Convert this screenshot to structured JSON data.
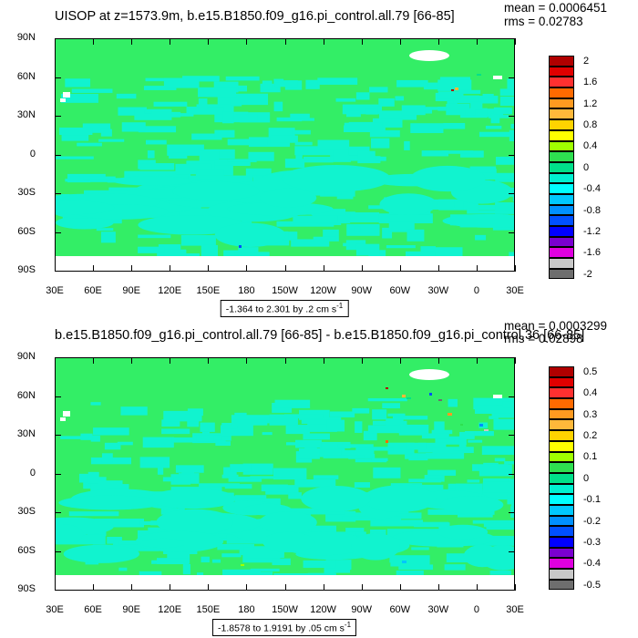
{
  "panels": [
    {
      "id": "top",
      "title": "UISOP at z=1573.9m, b.e15.B1850.f09_g16.pi_control.all.79 [66-85]",
      "mean": "mean = 0.0006451",
      "rms": "rms = 0.02783",
      "range": "-1.364 to 2.301 by .2 cm s",
      "range_sup": "-1",
      "colorbar_labels": [
        "2",
        "1.6",
        "1.2",
        "0.8",
        "0.4",
        "0",
        "-0.4",
        "-0.8",
        "-1.2",
        "-1.6",
        "-2"
      ],
      "colorbar_colors": [
        "#b00000",
        "#e00000",
        "#ff3030",
        "#ff6a00",
        "#ff9a20",
        "#ffb83a",
        "#ffd300",
        "#ffff00",
        "#a0ff00",
        "#2ee050",
        "#00e08a",
        "#00f0d0",
        "#00ffff",
        "#00c8ff",
        "#0090ff",
        "#0050ff",
        "#0000ff",
        "#7a00d0",
        "#e000e0",
        "#c8c8c8",
        "#6e6e6e"
      ]
    },
    {
      "id": "bottom",
      "title": "b.e15.B1850.f09_g16.pi_control.all.79 [66-85] - b.e15.B1850.f09_g16.pi_control.36 [66-85]",
      "mean": "mean = 0.0003299",
      "rms": "rms = 0.02898",
      "range": "-1.8578 to 1.9191 by .05 cm s",
      "range_sup": "-1",
      "colorbar_labels": [
        "0.5",
        "0.4",
        "0.3",
        "0.2",
        "0.1",
        "0",
        "-0.1",
        "-0.2",
        "-0.3",
        "-0.4",
        "-0.5"
      ],
      "colorbar_colors": [
        "#b00000",
        "#e00000",
        "#ff3030",
        "#ff6a00",
        "#ff9a20",
        "#ffb83a",
        "#ffd300",
        "#ffff00",
        "#a0ff00",
        "#2ee050",
        "#00e08a",
        "#00f0d0",
        "#00ffff",
        "#00c8ff",
        "#0090ff",
        "#0050ff",
        "#0000ff",
        "#7a00d0",
        "#e000e0",
        "#c8c8c8",
        "#6e6e6e"
      ]
    }
  ],
  "y_ticks": [
    "90N",
    "60N",
    "30N",
    "0",
    "30S",
    "60S",
    "90S"
  ],
  "x_ticks": [
    "30E",
    "60E",
    "90E",
    "120E",
    "150E",
    "180",
    "150W",
    "120W",
    "90W",
    "60W",
    "30W",
    "0",
    "30E"
  ],
  "map_colors": {
    "ocean_green": "#33ee66",
    "ocean_cyan": "#11f3cf",
    "no_data": "#ffffff"
  },
  "chart_data": [
    {
      "type": "heatmap",
      "title": "UISOP at z=1573.9m, b.e15.B1850.f09_g16.pi_control.all.79 [66-85]",
      "x_range": [
        "30E",
        "30E"
      ],
      "y_range": [
        "90S",
        "90N"
      ],
      "colorbar_levels": [
        2,
        1.6,
        1.2,
        0.8,
        0.4,
        0,
        -0.4,
        -0.8,
        -1.2,
        -1.6,
        -2
      ],
      "mean": 0.0006451,
      "rms": 0.02783,
      "data_min": -1.364,
      "data_max": 2.301,
      "interval": 0.2,
      "units": "cm s-1"
    },
    {
      "type": "heatmap",
      "title": "b.e15.B1850.f09_g16.pi_control.all.79 [66-85] - b.e15.B1850.f09_g16.pi_control.36 [66-85]",
      "x_range": [
        "30E",
        "30E"
      ],
      "y_range": [
        "90S",
        "90N"
      ],
      "colorbar_levels": [
        0.5,
        0.4,
        0.3,
        0.2,
        0.1,
        0,
        -0.1,
        -0.2,
        -0.3,
        -0.4,
        -0.5
      ],
      "mean": 0.0003299,
      "rms": 0.02898,
      "data_min": -1.8578,
      "data_max": 1.9191,
      "interval": 0.05,
      "units": "cm s-1"
    }
  ]
}
